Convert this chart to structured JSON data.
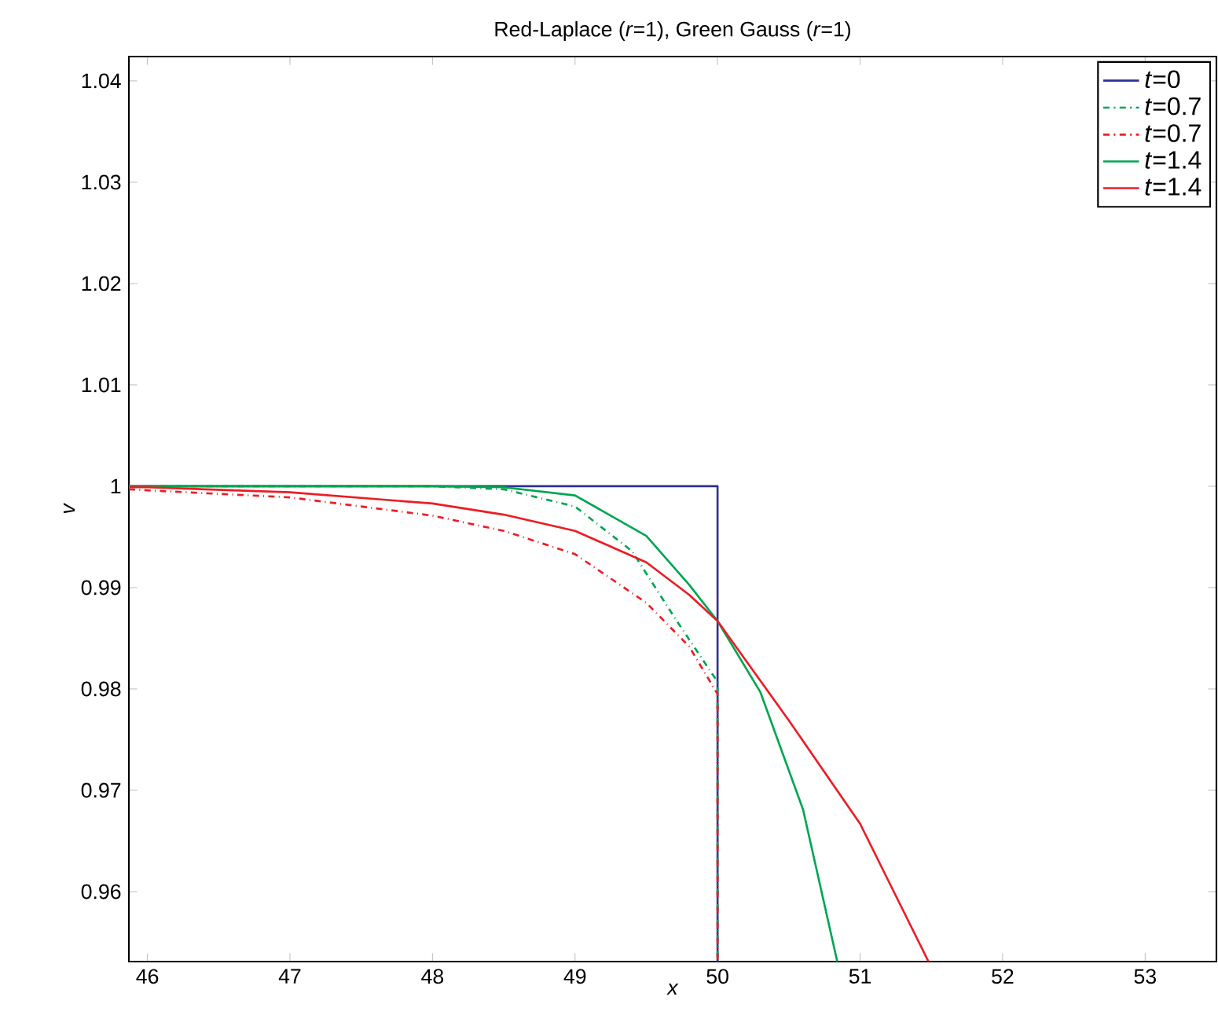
{
  "chart_data": {
    "type": "line",
    "title": "Red-Laplace (*r*=1), Green Gauss (*r*=1)",
    "xlabel": "x",
    "ylabel": "v",
    "xlim": [
      45.87,
      53.5
    ],
    "ylim": [
      0.9531,
      1.0424
    ],
    "xticks": [
      46,
      47,
      48,
      49,
      50,
      51,
      52,
      53
    ],
    "yticks": [
      0.96,
      0.97,
      0.98,
      0.99,
      1,
      1.01,
      1.02,
      1.03,
      1.04
    ],
    "grid": false,
    "legend": "top right",
    "series": [
      {
        "name": "*t*=0",
        "color": "#2e3192",
        "line_style": "solid",
        "x": [
          45.87,
          50,
          50
        ],
        "values": [
          1,
          1,
          0.9531
        ]
      },
      {
        "name": "*t*=0.7",
        "color": "#00a651",
        "line_style": "dashdot",
        "x": [
          45.87,
          48,
          48.5,
          49,
          49.4,
          49.7,
          50,
          50
        ],
        "values": [
          1,
          1,
          0.9997,
          0.998,
          0.9936,
          0.987,
          0.9807,
          0.9531
        ]
      },
      {
        "name": "*t*=0.7",
        "color": "#ed1c24",
        "line_style": "dashdot",
        "x": [
          45.87,
          46,
          47,
          48,
          48.5,
          49,
          49.5,
          49.8,
          50,
          50
        ],
        "values": [
          0.9997,
          0.9996,
          0.9989,
          0.9971,
          0.9956,
          0.9933,
          0.9885,
          0.9842,
          0.9795,
          0.9531
        ]
      },
      {
        "name": "*t*=1.4",
        "color": "#00a651",
        "line_style": "solid",
        "x": [
          45.87,
          48,
          48.5,
          49,
          49.5,
          49.8,
          50,
          50.3,
          50.6,
          50.84
        ],
        "values": [
          1,
          1,
          0.9999,
          0.9991,
          0.9951,
          0.9903,
          0.9867,
          0.9797,
          0.9681,
          0.9531
        ]
      },
      {
        "name": "*t*=1.4",
        "color": "#ed1c24",
        "line_style": "solid",
        "x": [
          45.87,
          46,
          47,
          48,
          48.5,
          49,
          49.5,
          49.8,
          50,
          50.5,
          51,
          51.48
        ],
        "values": [
          0.9999,
          0.9999,
          0.9994,
          0.9983,
          0.9972,
          0.9956,
          0.9925,
          0.9893,
          0.9867,
          0.9769,
          0.9667,
          0.9531
        ]
      }
    ]
  }
}
